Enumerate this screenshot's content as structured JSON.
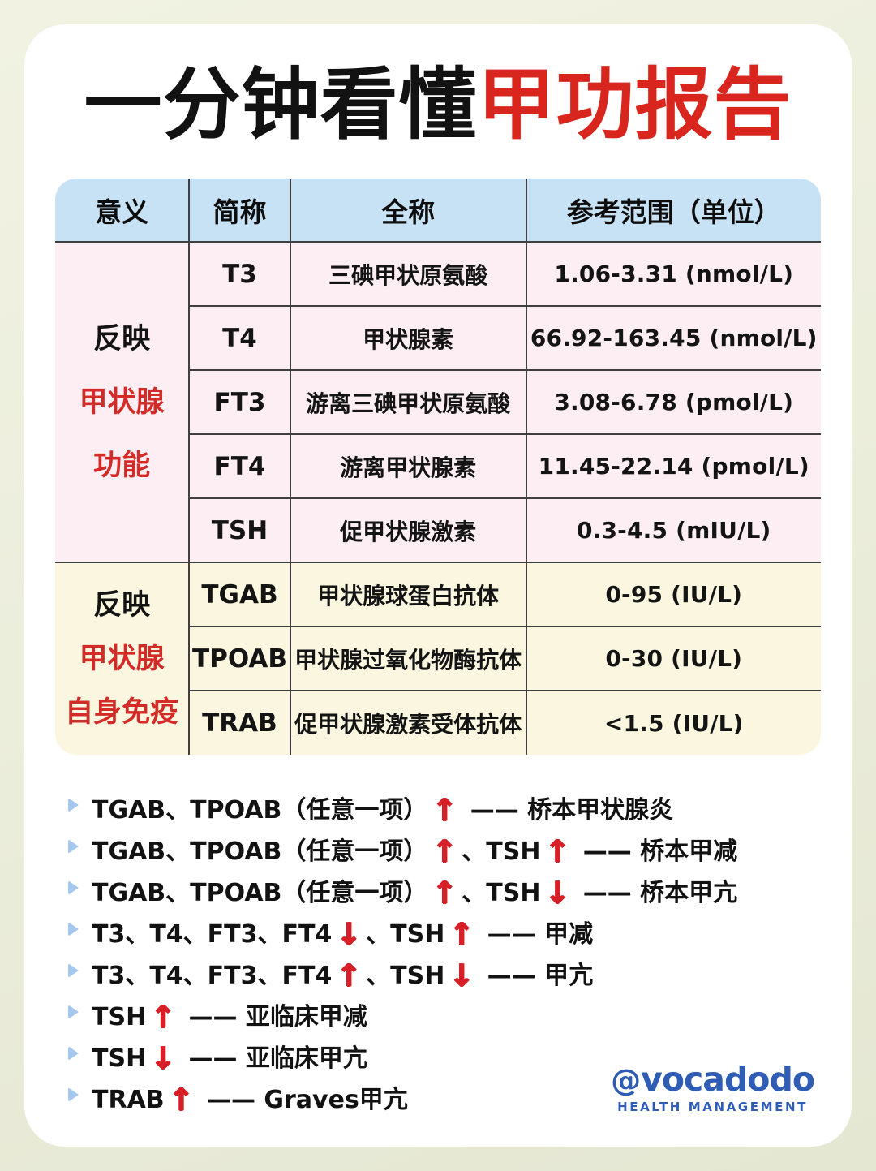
{
  "title": {
    "black": "一分钟看懂",
    "red": "甲功报告"
  },
  "table": {
    "headers": [
      "意义",
      "简称",
      "全称",
      "参考范围（单位）"
    ],
    "sections": [
      {
        "label_lines": [
          "反映",
          "甲状腺",
          "功能"
        ],
        "rows": [
          {
            "abbr": "T3",
            "full": "三碘甲状原氨酸",
            "range": "1.06-3.31 (nmol/L)"
          },
          {
            "abbr": "T4",
            "full": "甲状腺素",
            "range": "66.92-163.45 (nmol/L)"
          },
          {
            "abbr": "FT3",
            "full": "游离三碘甲状原氨酸",
            "range": "3.08-6.78 (pmol/L)"
          },
          {
            "abbr": "FT4",
            "full": "游离甲状腺素",
            "range": "11.45-22.14 (pmol/L)"
          },
          {
            "abbr": "TSH",
            "full": "促甲状腺激素",
            "range": "0.3-4.5 (mIU/L)"
          }
        ]
      },
      {
        "label_lines": [
          "反映",
          "甲状腺",
          "自身免疫"
        ],
        "rows": [
          {
            "abbr": "TGAB",
            "full": "甲状腺球蛋白抗体",
            "range": "0-95 (IU/L)"
          },
          {
            "abbr": "TPOAB",
            "full": "甲状腺过氧化物酶抗体",
            "range": "0-30 (IU/L)"
          },
          {
            "abbr": "TRAB",
            "full": "促甲状腺激素受体抗体",
            "range": "<1.5 (IU/L)"
          }
        ]
      }
    ]
  },
  "notes": [
    {
      "pre": "TGAB、TPOAB（任意一项）",
      "a1": "↑",
      "mid": " —— 桥本甲状腺炎",
      "a2": "",
      "post": ""
    },
    {
      "pre": "TGAB、TPOAB（任意一项）",
      "a1": "↑",
      "mid": "、TSH",
      "a2": "↑",
      "post": " —— 桥本甲减"
    },
    {
      "pre": "TGAB、TPOAB（任意一项）",
      "a1": "↑",
      "mid": "、TSH",
      "a2": "↓",
      "post": " —— 桥本甲亢"
    },
    {
      "pre": "T3、T4、FT3、FT4",
      "a1": "↓",
      "mid": "、TSH",
      "a2": "↑",
      "post": " —— 甲减"
    },
    {
      "pre": "T3、T4、FT3、FT4",
      "a1": "↑",
      "mid": "、TSH",
      "a2": "↓",
      "post": " —— 甲亢"
    },
    {
      "pre": "TSH",
      "a1": "↑",
      "mid": " —— 亚临床甲减",
      "a2": "",
      "post": ""
    },
    {
      "pre": "TSH",
      "a1": "↓",
      "mid": " —— 亚临床甲亢",
      "a2": "",
      "post": ""
    },
    {
      "pre": "TRAB",
      "a1": "↑",
      "mid": " —— Graves甲亢",
      "a2": "",
      "post": ""
    }
  ],
  "brand": {
    "mark": "@",
    "name": "vocadodo",
    "subtitle": "HEALTH MANAGEMENT"
  },
  "colors": {
    "title_red": "#d8261f",
    "accent_red": "#d32c28",
    "arrow_red": "#d61f26",
    "header_bg": "#c7e2f5",
    "function_section_bg": "#fdeef4",
    "immune_section_bg": "#faf6df",
    "bullet_blue": "#a5c9ee",
    "brand_blue": "#2f5db5",
    "page_bg": "#ecEEdc"
  }
}
